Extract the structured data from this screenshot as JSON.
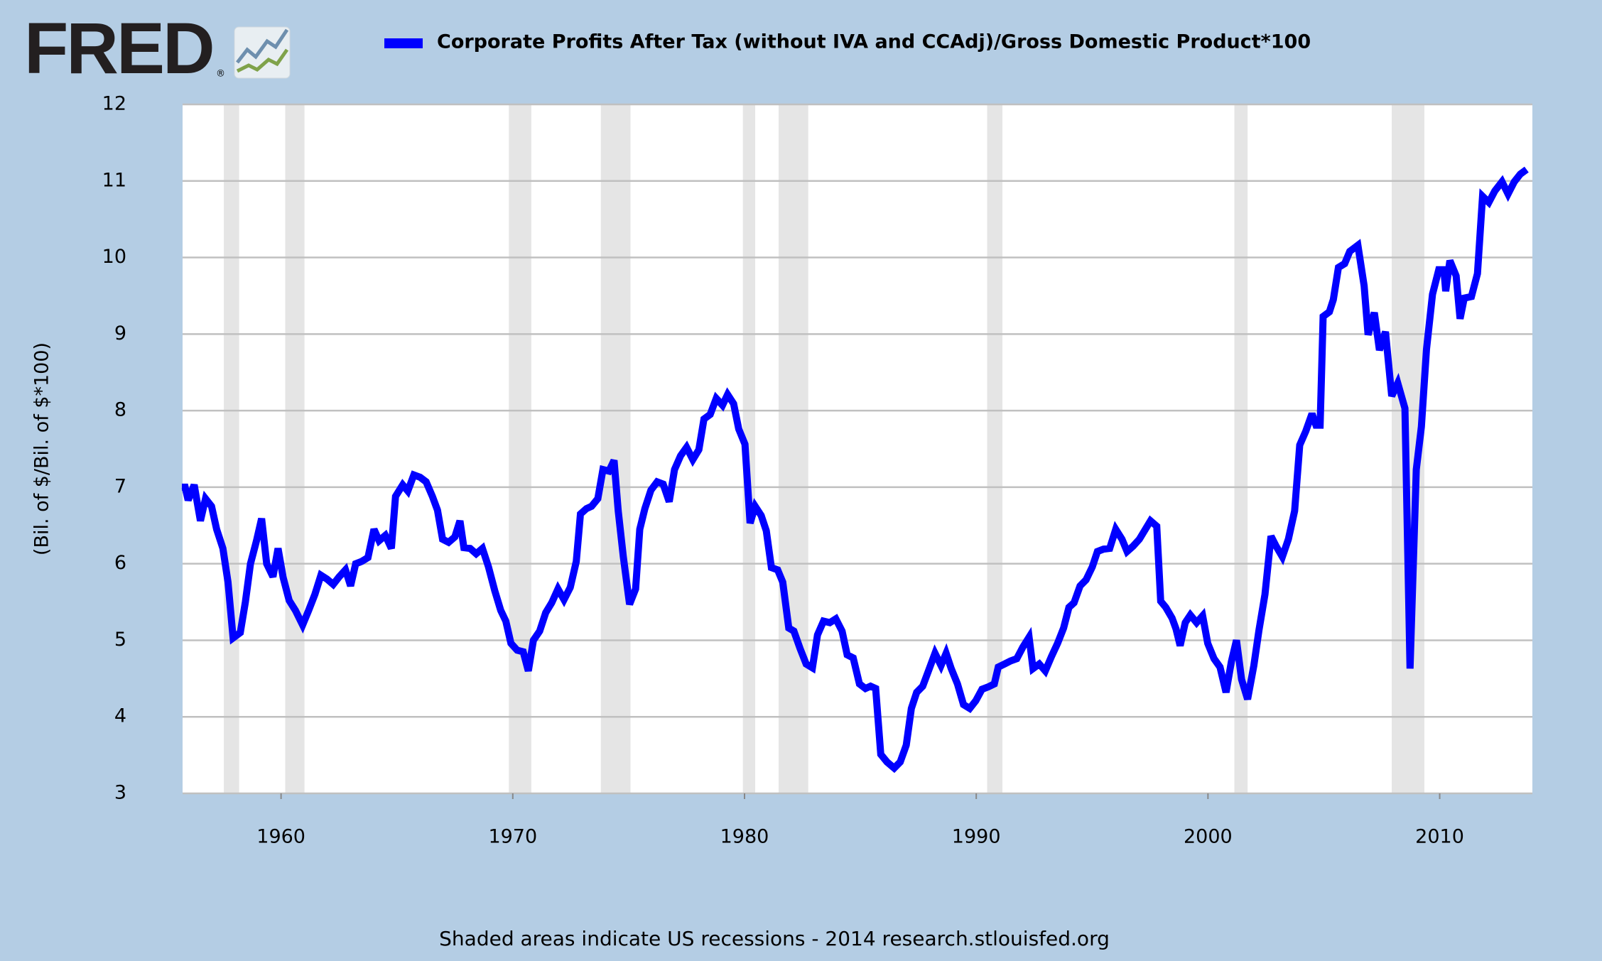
{
  "chart_data": {
    "type": "line",
    "logo": "FRED",
    "logo_mark": "®",
    "y_label": "(Bil. of $/Bil. of $*100)",
    "note": "Shaded areas indicate US recessions - 2014 research.stlouisfed.org",
    "xlim": [
      1955.75,
      2014.0
    ],
    "xticks": [
      1960,
      1970,
      1980,
      1990,
      2000,
      2010
    ],
    "ylim": [
      3,
      12
    ],
    "yticks": [
      3,
      4,
      5,
      6,
      7,
      8,
      9,
      10,
      11,
      12
    ],
    "grid": true,
    "recessions": [
      [
        1957.53,
        1958.19
      ],
      [
        1960.18,
        1961.01
      ],
      [
        1969.83,
        1970.8
      ],
      [
        1973.8,
        1975.08
      ],
      [
        1979.93,
        1980.46
      ],
      [
        1981.47,
        1982.75
      ],
      [
        1990.47,
        1991.13
      ],
      [
        2001.14,
        2001.71
      ],
      [
        2007.93,
        2009.34
      ]
    ],
    "recession_color": "#e5e5e5",
    "x": [
      1955.72,
      1955.86,
      1955.99,
      1956.25,
      1956.52,
      1956.74,
      1957.0,
      1957.22,
      1957.49,
      1957.71,
      1957.93,
      1958.24,
      1958.46,
      1958.68,
      1958.94,
      1959.16,
      1959.38,
      1959.65,
      1959.87,
      1960.09,
      1960.35,
      1960.62,
      1960.93,
      1961.19,
      1961.46,
      1961.72,
      1961.98,
      1962.25,
      1962.51,
      1962.78,
      1963.0,
      1963.22,
      1963.48,
      1963.75,
      1964.01,
      1964.23,
      1964.5,
      1964.76,
      1964.94,
      1965.25,
      1965.47,
      1965.73,
      1966.0,
      1966.26,
      1966.53,
      1966.75,
      1966.97,
      1967.23,
      1967.5,
      1967.72,
      1967.89,
      1968.16,
      1968.42,
      1968.69,
      1968.95,
      1969.22,
      1969.48,
      1969.7,
      1969.92,
      1970.19,
      1970.45,
      1970.67,
      1970.89,
      1971.16,
      1971.42,
      1971.68,
      1971.95,
      1972.21,
      1972.48,
      1972.74,
      1972.92,
      1973.18,
      1973.4,
      1973.67,
      1973.89,
      1974.15,
      1974.37,
      1974.55,
      1974.77,
      1975.04,
      1975.3,
      1975.48,
      1975.7,
      1975.96,
      1976.23,
      1976.49,
      1976.75,
      1976.98,
      1977.24,
      1977.5,
      1977.77,
      1978.03,
      1978.25,
      1978.52,
      1978.78,
      1979.05,
      1979.27,
      1979.53,
      1979.75,
      1980.02,
      1980.24,
      1980.46,
      1980.72,
      1980.94,
      1981.16,
      1981.43,
      1981.65,
      1981.91,
      1982.13,
      1982.4,
      1982.66,
      1982.93,
      1983.15,
      1983.41,
      1983.68,
      1983.94,
      1984.21,
      1984.43,
      1984.69,
      1984.96,
      1985.22,
      1985.44,
      1985.66,
      1985.88,
      1986.15,
      1986.46,
      1986.72,
      1986.98,
      1987.2,
      1987.43,
      1987.69,
      1987.95,
      1988.22,
      1988.48,
      1988.7,
      1988.92,
      1989.19,
      1989.45,
      1989.72,
      1989.98,
      1990.25,
      1990.51,
      1990.78,
      1990.95,
      1991.22,
      1991.48,
      1991.75,
      1992.01,
      1992.28,
      1992.45,
      1992.72,
      1992.98,
      1993.25,
      1993.51,
      1993.77,
      1994.0,
      1994.22,
      1994.48,
      1994.74,
      1995.01,
      1995.23,
      1995.49,
      1995.76,
      1996.02,
      1996.29,
      1996.51,
      1996.77,
      1997.04,
      1997.26,
      1997.52,
      1997.79,
      1997.96,
      1998.18,
      1998.45,
      1998.62,
      1998.8,
      1999.02,
      1999.24,
      1999.51,
      1999.77,
      1999.99,
      2000.26,
      2000.52,
      2000.78,
      2001.01,
      2001.23,
      2001.45,
      2001.71,
      2001.98,
      2002.2,
      2002.46,
      2002.72,
      2002.94,
      2003.21,
      2003.47,
      2003.74,
      2003.96,
      2004.22,
      2004.49,
      2004.66,
      2004.84,
      2004.97,
      2005.24,
      2005.41,
      2005.63,
      2005.9,
      2006.12,
      2006.47,
      2006.74,
      2006.91,
      2007.18,
      2007.4,
      2007.66,
      2007.93,
      2008.19,
      2008.5,
      2008.72,
      2008.99,
      2009.21,
      2009.43,
      2009.69,
      2009.96,
      2010.18,
      2010.26,
      2010.44,
      2010.71,
      2010.88,
      2011.06,
      2011.37,
      2011.63,
      2011.85,
      2012.12,
      2012.38,
      2012.69,
      2012.95,
      2013.22,
      2013.48,
      2013.75
    ],
    "series": [
      {
        "name": "Corporate Profits After Tax (without IVA and CCAdj)/Gross Domestic Product*100",
        "color": "#0000ff",
        "values": [
          7.0,
          7.0,
          6.83,
          7.03,
          6.56,
          6.85,
          6.75,
          6.45,
          6.2,
          5.76,
          5.03,
          5.1,
          5.5,
          6.0,
          6.3,
          6.59,
          6.0,
          5.83,
          6.2,
          5.82,
          5.52,
          5.39,
          5.2,
          5.39,
          5.6,
          5.85,
          5.8,
          5.73,
          5.83,
          5.92,
          5.71,
          6.0,
          6.03,
          6.08,
          6.45,
          6.3,
          6.37,
          6.2,
          6.88,
          7.03,
          6.95,
          7.16,
          7.13,
          7.07,
          6.88,
          6.7,
          6.32,
          6.28,
          6.35,
          6.56,
          6.21,
          6.2,
          6.13,
          6.2,
          5.96,
          5.65,
          5.39,
          5.25,
          4.96,
          4.87,
          4.85,
          4.6,
          5.0,
          5.12,
          5.36,
          5.49,
          5.67,
          5.53,
          5.69,
          6.03,
          6.65,
          6.72,
          6.75,
          6.85,
          7.23,
          7.21,
          7.35,
          6.69,
          6.09,
          5.47,
          5.67,
          6.45,
          6.72,
          6.96,
          7.07,
          7.04,
          6.81,
          7.23,
          7.41,
          7.52,
          7.36,
          7.49,
          7.89,
          7.95,
          8.16,
          8.07,
          8.21,
          8.09,
          7.76,
          7.56,
          6.53,
          6.75,
          6.63,
          6.43,
          5.95,
          5.92,
          5.76,
          5.16,
          5.12,
          4.89,
          4.69,
          4.64,
          5.07,
          5.25,
          5.23,
          5.28,
          5.12,
          4.81,
          4.77,
          4.43,
          4.37,
          4.4,
          4.37,
          3.51,
          3.41,
          3.33,
          3.41,
          3.63,
          4.11,
          4.32,
          4.4,
          4.61,
          4.83,
          4.67,
          4.83,
          4.63,
          4.43,
          4.16,
          4.11,
          4.21,
          4.36,
          4.39,
          4.43,
          4.65,
          4.69,
          4.73,
          4.76,
          4.91,
          5.04,
          4.63,
          4.69,
          4.6,
          4.79,
          4.96,
          5.16,
          5.43,
          5.49,
          5.71,
          5.79,
          5.96,
          6.16,
          6.19,
          6.2,
          6.45,
          6.32,
          6.16,
          6.23,
          6.32,
          6.43,
          6.56,
          6.49,
          5.51,
          5.43,
          5.29,
          5.15,
          4.93,
          5.23,
          5.33,
          5.23,
          5.32,
          4.96,
          4.76,
          4.65,
          4.32,
          4.72,
          5.0,
          4.49,
          4.23,
          4.67,
          5.13,
          5.6,
          6.36,
          6.23,
          6.09,
          6.32,
          6.69,
          7.55,
          7.73,
          7.96,
          7.81,
          7.81,
          9.23,
          9.29,
          9.45,
          9.87,
          9.92,
          10.08,
          10.16,
          9.63,
          8.99,
          9.28,
          8.79,
          9.03,
          8.19,
          8.36,
          8.03,
          4.63,
          7.23,
          7.79,
          8.8,
          9.52,
          9.84,
          9.84,
          9.56,
          9.96,
          9.76,
          9.2,
          9.47,
          9.49,
          9.79,
          10.8,
          10.72,
          10.87,
          10.99,
          10.83,
          10.99,
          11.09,
          11.15
        ]
      }
    ]
  }
}
